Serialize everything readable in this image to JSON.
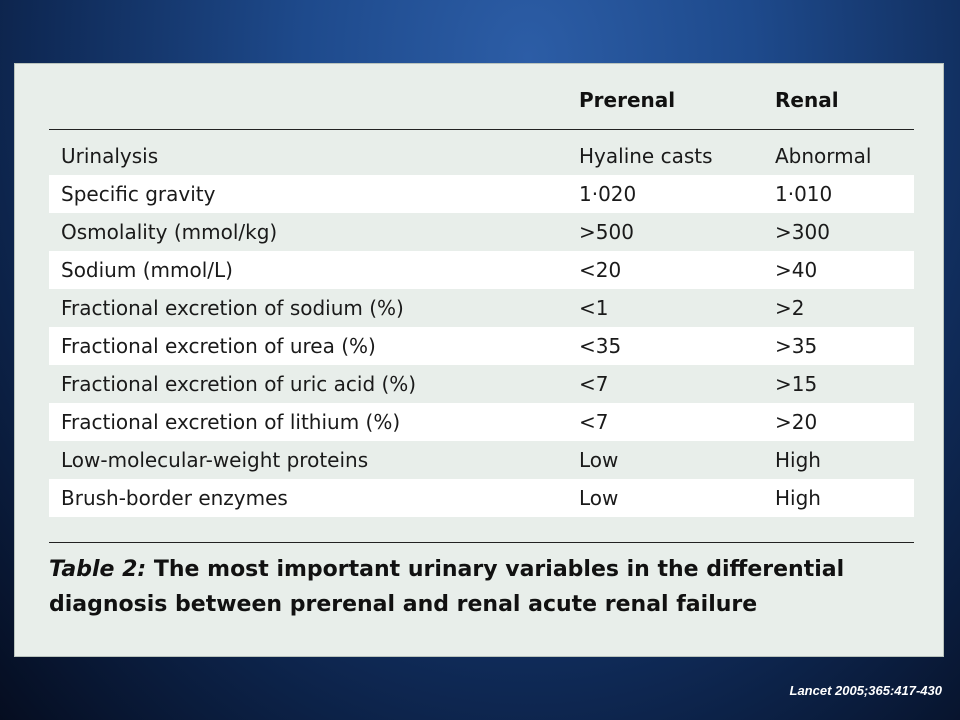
{
  "table": {
    "headers": [
      "",
      "Prerenal",
      "Renal"
    ],
    "rows": [
      [
        "Urinalysis",
        "Hyaline casts",
        "Abnormal"
      ],
      [
        "Specific gravity",
        "1·020",
        "1·010"
      ],
      [
        "Osmolality (mmol/kg)",
        ">500",
        ">300"
      ],
      [
        "Sodium (mmol/L)",
        "<20",
        ">40"
      ],
      [
        "Fractional excretion of sodium (%)",
        "<1",
        ">2"
      ],
      [
        "Fractional excretion of urea (%)",
        "<35",
        ">35"
      ],
      [
        "Fractional excretion of uric acid (%)",
        "<7",
        ">15"
      ],
      [
        "Fractional excretion of lithium (%)",
        "<7",
        ">20"
      ],
      [
        "Low-molecular-weight proteins",
        "Low",
        "High"
      ],
      [
        "Brush-border enzymes",
        "Low",
        "High"
      ]
    ]
  },
  "caption": {
    "label": "Table 2:",
    "text": "The most important urinary variables in the differential diagnosis between prerenal and renal acute renal failure"
  },
  "citation": "Lancet 2005;365:417-430",
  "colors": {
    "background": "#1e4a8c",
    "panel": "#e8eeea",
    "row_highlight": "#ffffff"
  }
}
